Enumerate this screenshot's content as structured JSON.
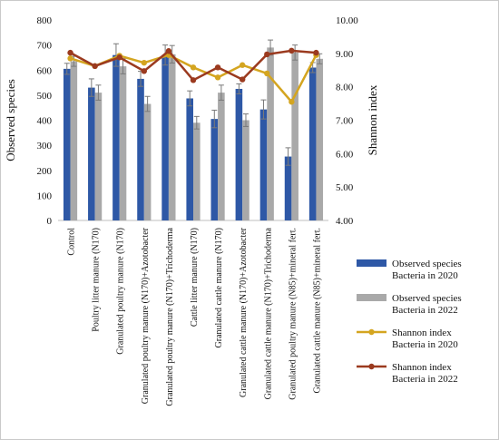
{
  "chart_data": {
    "type": "bar",
    "title": "",
    "xlabel": "",
    "ylabel": "Observed species",
    "y2label": "Shannon index",
    "ylim": [
      0,
      800
    ],
    "y2lim": [
      4.0,
      10.0
    ],
    "yticks": [
      "0",
      "100",
      "200",
      "300",
      "400",
      "500",
      "600",
      "700",
      "800"
    ],
    "y2ticks": [
      "4.00",
      "5.00",
      "6.00",
      "7.00",
      "8.00",
      "9.00",
      "10.00"
    ],
    "grid": false,
    "legend_position": "right",
    "categories": [
      "Control",
      "Poultry litter manure (N170)",
      "Granulated poultry manure (N170)",
      "Granulated poultry manure (N170)+Azotobacter",
      "Granulated poultry manure (N170)+Trichoderma",
      "Cattle litter manure (N170)",
      "Granulated cattle manure (N170)",
      "Granulated cattle manure (N170)+Azotobacter",
      "Granulated cattle manure (N170)+Trichoderma",
      "Granulated poultry manure (N85)+mineral fert.",
      "Granulated cattle manure (N85)+mineral fert."
    ],
    "series": [
      {
        "name": "Observed species Bacteria in 2020",
        "legend_lines": [
          "Observed species",
          "Bacteria in 2020"
        ],
        "kind": "bar",
        "axis": "left",
        "color": "#2e58a6",
        "values": [
          605,
          530,
          660,
          565,
          660,
          487,
          405,
          525,
          443,
          255,
          610
        ],
        "errors": [
          22,
          35,
          45,
          30,
          40,
          30,
          35,
          20,
          38,
          35,
          20
        ]
      },
      {
        "name": "Observed species Bacteria in 2022",
        "legend_lines": [
          "Observed species",
          "Bacteria in 2022"
        ],
        "kind": "bar",
        "axis": "left",
        "color": "#a9a9a9",
        "values": [
          635,
          510,
          615,
          465,
          663,
          390,
          510,
          400,
          690,
          670,
          645
        ],
        "errors": [
          20,
          30,
          30,
          30,
          35,
          25,
          30,
          25,
          30,
          30,
          20
        ]
      },
      {
        "name": "Shannon index Bacteria in 2020",
        "legend_lines": [
          "Shannon index",
          "Bacteria in 2020"
        ],
        "kind": "line",
        "axis": "right",
        "color": "#d4a520",
        "values": [
          8.85,
          8.62,
          8.93,
          8.72,
          8.95,
          8.58,
          8.28,
          8.65,
          8.4,
          7.55,
          8.95
        ]
      },
      {
        "name": "Shannon index Bacteria in 2022",
        "legend_lines": [
          "Shannon index",
          "Bacteria in 2022"
        ],
        "kind": "line",
        "axis": "right",
        "color": "#9b3a1f",
        "values": [
          9.02,
          8.62,
          8.88,
          8.47,
          9.07,
          8.2,
          8.58,
          8.22,
          8.97,
          9.08,
          9.02
        ]
      }
    ]
  }
}
